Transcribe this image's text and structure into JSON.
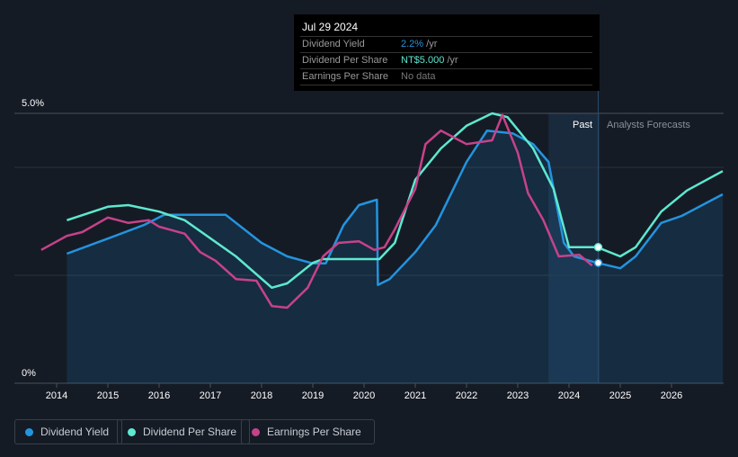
{
  "chart_data": {
    "type": "line",
    "title": "",
    "xlabel": "",
    "ylabel": "",
    "xlim": [
      2013.2,
      2027
    ],
    "ylim": [
      0,
      5
    ],
    "y_tick_labels": [
      "0%",
      "5.0%"
    ],
    "x_tick_labels": [
      "2014",
      "2015",
      "2016",
      "2017",
      "2018",
      "2019",
      "2020",
      "2021",
      "2022",
      "2023",
      "2024",
      "2025",
      "2026"
    ],
    "region_labels": {
      "past": "Past",
      "forecast": "Analysts Forecasts"
    },
    "forecast_band": [
      2023.6,
      2024.6
    ],
    "series": [
      {
        "name": "Dividend Yield",
        "color": "#2394df",
        "fill": true,
        "x": [
          2014.2,
          2015,
          2015.7,
          2016.1,
          2017.3,
          2018,
          2018.5,
          2019,
          2019.25,
          2019.6,
          2019.9,
          2020.25,
          2020.27,
          2020.5,
          2021,
          2021.4,
          2022,
          2022.4,
          2022.9,
          2023.3,
          2023.6,
          2023.9,
          2024.1,
          2024.55,
          2025,
          2025.3,
          2025.8,
          2026.2,
          2027
        ],
        "y": [
          2.4,
          2.68,
          2.93,
          3.12,
          3.12,
          2.6,
          2.35,
          2.22,
          2.22,
          2.93,
          3.3,
          3.4,
          1.82,
          1.93,
          2.43,
          2.93,
          4.1,
          4.68,
          4.63,
          4.43,
          4.1,
          2.6,
          2.35,
          2.23,
          2.13,
          2.35,
          2.97,
          3.1,
          3.5
        ]
      },
      {
        "name": "Dividend Per Share",
        "color": "#5ee8cf",
        "fill": false,
        "x": [
          2014.2,
          2015,
          2015.4,
          2016,
          2016.5,
          2017.5,
          2018.2,
          2018.5,
          2019,
          2019.2,
          2020.3,
          2020.6,
          2021,
          2021.5,
          2022,
          2022.5,
          2022.8,
          2023.3,
          2023.7,
          2024,
          2024.55,
          2025,
          2025.3,
          2025.8,
          2026.3,
          2027
        ],
        "y": [
          3.02,
          3.27,
          3.3,
          3.18,
          3.02,
          2.35,
          1.77,
          1.85,
          2.23,
          2.3,
          2.3,
          2.6,
          3.77,
          4.35,
          4.77,
          5.0,
          4.93,
          4.35,
          3.6,
          2.52,
          2.52,
          2.35,
          2.52,
          3.18,
          3.57,
          3.93
        ]
      },
      {
        "name": "Earnings Per Share",
        "color": "#c7428a",
        "fill": false,
        "x": [
          2013.7,
          2014.2,
          2014.5,
          2015,
          2015.4,
          2015.8,
          2016,
          2016.5,
          2016.8,
          2017.1,
          2017.5,
          2017.9,
          2018.2,
          2018.5,
          2018.9,
          2019.2,
          2019.5,
          2019.9,
          2020.2,
          2020.4,
          2020.6,
          2021,
          2021.2,
          2021.5,
          2022,
          2022.5,
          2022.7,
          2023,
          2023.2,
          2023.5,
          2023.8,
          2024.2,
          2024.45
        ],
        "y": [
          2.47,
          2.73,
          2.8,
          3.07,
          2.97,
          3.02,
          2.9,
          2.77,
          2.43,
          2.27,
          1.93,
          1.9,
          1.43,
          1.4,
          1.77,
          2.35,
          2.6,
          2.63,
          2.47,
          2.52,
          2.85,
          3.6,
          4.43,
          4.68,
          4.43,
          4.5,
          4.97,
          4.27,
          3.52,
          3.02,
          2.35,
          2.38,
          2.18
        ]
      }
    ],
    "tooltip_x": 2024.57,
    "legend_placement": "bottom-left"
  },
  "tooltip": {
    "date": "Jul 29 2024",
    "rows": [
      {
        "label": "Dividend Yield",
        "value": "2.2%",
        "unit": " /yr",
        "color": "#2394df"
      },
      {
        "label": "Dividend Per Share",
        "value": "NT$5.000",
        "unit": " /yr",
        "color": "#5ee8cf"
      },
      {
        "label": "Earnings Per Share",
        "value": "No data",
        "unit": "",
        "color": "#777777"
      }
    ]
  },
  "legend": [
    "Dividend Yield",
    "Dividend Per Share",
    "Earnings Per Share"
  ]
}
